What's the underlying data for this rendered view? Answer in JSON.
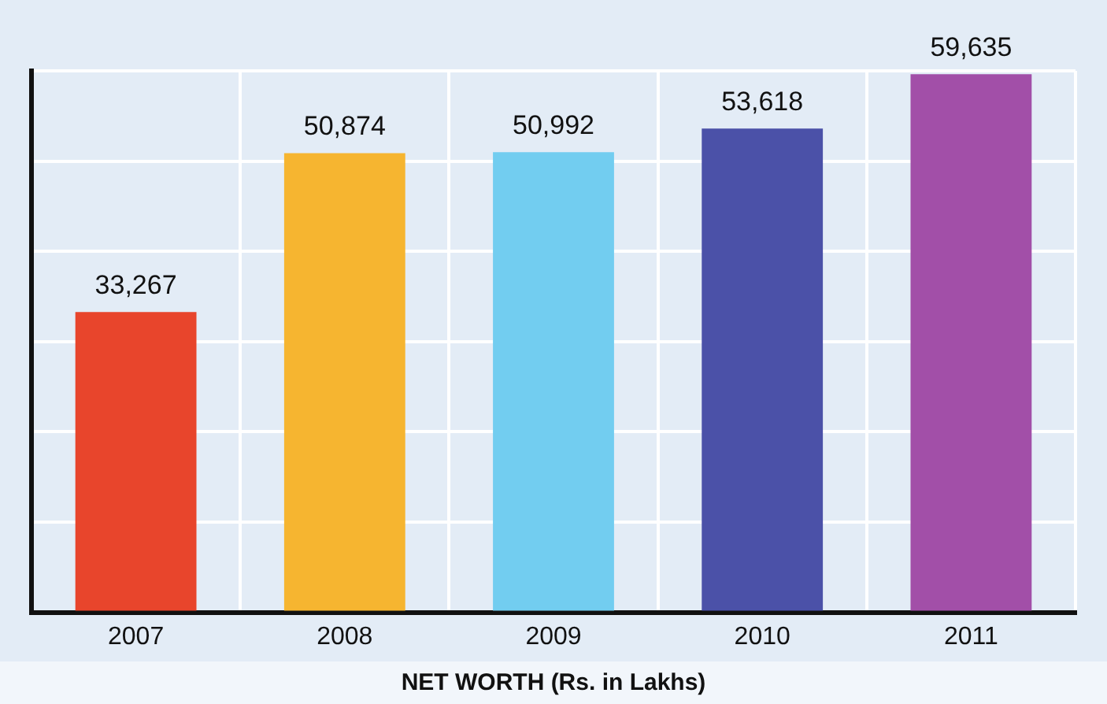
{
  "chart_data": {
    "type": "bar",
    "xlabel": "NET WORTH (Rs. in Lakhs)",
    "categories": [
      "2007",
      "2008",
      "2009",
      "2010",
      "2011"
    ],
    "values": [
      33267,
      50874,
      50992,
      53618,
      59635
    ],
    "value_labels": [
      "33,267",
      "50,874",
      "50,992",
      "53,618",
      "59,635"
    ],
    "colors": [
      "#e8452c",
      "#f6b530",
      "#72cdf0",
      "#4b51a8",
      "#a24fa8"
    ],
    "tick_labels": "x",
    "grid": true
  }
}
